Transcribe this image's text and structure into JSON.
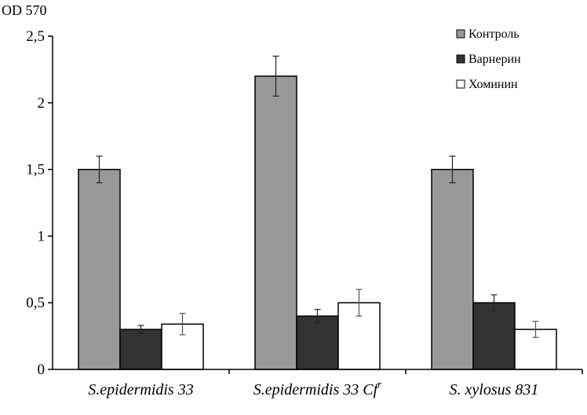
{
  "chart_data": {
    "type": "bar",
    "ylabel": "OD 570",
    "ylim": [
      0,
      2.5
    ],
    "yticks": [
      {
        "value": 0,
        "label": "0"
      },
      {
        "value": 0.5,
        "label": "0,5"
      },
      {
        "value": 1,
        "label": "1"
      },
      {
        "value": 1.5,
        "label": "1,5"
      },
      {
        "value": 2,
        "label": "2"
      },
      {
        "value": 2.5,
        "label": "2,5"
      }
    ],
    "categories": [
      {
        "name": "S.epidermidis 33",
        "sup": ""
      },
      {
        "name": "S.epidermidis 33 Cf",
        "sup": "r"
      },
      {
        "name": "S. xylosus 831",
        "sup": ""
      }
    ],
    "series": [
      {
        "name": "Контроль",
        "color": "#999999",
        "values": [
          1.5,
          2.2,
          1.5
        ],
        "errors": [
          0.1,
          0.15,
          0.1
        ]
      },
      {
        "name": "Варнерин",
        "color": "#333333",
        "values": [
          0.3,
          0.4,
          0.5
        ],
        "errors": [
          0.03,
          0.05,
          0.06
        ]
      },
      {
        "name": "Хоминин",
        "color": "#ffffff",
        "values": [
          0.34,
          0.5,
          0.3
        ],
        "errors": [
          0.08,
          0.1,
          0.06
        ]
      }
    ],
    "legend": "top-right",
    "grid": false
  }
}
